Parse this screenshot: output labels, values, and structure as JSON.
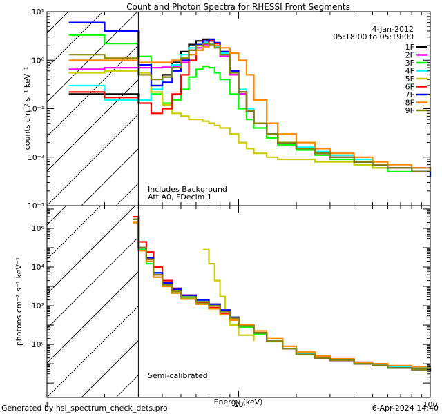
{
  "chart_data": [
    {
      "type": "line",
      "panel": "top",
      "title": "Count and Photon Spectra for RHESSI Front Segments",
      "date": "4-Jan-2012",
      "time_range": "05:18:00 to 05:19:00",
      "xlabel": "",
      "ylabel": "counts cm⁻² s⁻¹ keV⁻¹",
      "xscale": "log",
      "yscale": "log",
      "xlim": [
        1,
        100
      ],
      "ylim": [
        0.001,
        10
      ],
      "y_ticks": [
        "10⁻³",
        "10⁻²",
        "10⁻¹",
        "10⁰",
        "10¹"
      ],
      "vline_x": 3,
      "annotations": [
        "Includes Background",
        "Att A0, FDecim 1"
      ],
      "legend_position": "top-right",
      "series": [
        {
          "name": "1F",
          "color": "#000000",
          "x": [
            1.3,
            2,
            3,
            3.5,
            4,
            4.5,
            5,
            5.5,
            6,
            6.5,
            7,
            7.5,
            8,
            9,
            10,
            11,
            12,
            14,
            16,
            20,
            25,
            30,
            40,
            50,
            60,
            80,
            100
          ],
          "y": [
            0.2,
            0.2,
            0.15,
            0.3,
            0.5,
            0.9,
            1.5,
            2.1,
            2.5,
            2.7,
            2.5,
            2.0,
            1.3,
            0.5,
            0.2,
            0.09,
            0.05,
            0.03,
            0.02,
            0.015,
            0.012,
            0.01,
            0.008,
            0.007,
            0.006,
            0.006,
            0.005
          ]
        },
        {
          "name": "2F",
          "color": "#ff00ff",
          "x": [
            1.3,
            2,
            3,
            3.5,
            4,
            4.5,
            5,
            5.5,
            6,
            6.5,
            7,
            7.5,
            8,
            9,
            10,
            11,
            12,
            14,
            16,
            20,
            25,
            30,
            40,
            50,
            60,
            80,
            100
          ],
          "y": [
            0.65,
            0.7,
            0.7,
            0.7,
            0.72,
            0.75,
            0.9,
            1.3,
            1.8,
            2.1,
            2.2,
            1.8,
            1.2,
            0.5,
            0.2,
            0.09,
            0.05,
            0.03,
            0.02,
            0.015,
            0.012,
            0.01,
            0.008,
            0.007,
            0.006,
            0.005,
            0.005
          ]
        },
        {
          "name": "3F",
          "color": "#00ff00",
          "x": [
            1.3,
            2,
            3,
            3.5,
            4,
            4.5,
            5,
            5.5,
            6,
            6.5,
            7,
            7.5,
            8,
            9,
            10,
            11,
            12,
            14,
            16,
            20,
            25,
            30,
            40,
            50,
            60,
            80,
            100
          ],
          "y": [
            3.3,
            2.2,
            1.2,
            0.2,
            0.13,
            0.15,
            0.25,
            0.45,
            0.65,
            0.75,
            0.7,
            0.55,
            0.4,
            0.2,
            0.1,
            0.06,
            0.04,
            0.025,
            0.018,
            0.014,
            0.011,
            0.009,
            0.007,
            0.006,
            0.005,
            0.005,
            0.004
          ]
        },
        {
          "name": "4F",
          "color": "#00ffff",
          "x": [
            1.3,
            2,
            3,
            3.5,
            4,
            4.5,
            5,
            5.5,
            6,
            6.5,
            7,
            7.5,
            8,
            9,
            10,
            11,
            12,
            14,
            16,
            20,
            25,
            30,
            40,
            50,
            60,
            80,
            100
          ],
          "y": [
            0.3,
            0.15,
            0.15,
            0.25,
            0.45,
            0.8,
            1.3,
            1.8,
            2.1,
            2.3,
            2.2,
            1.9,
            1.4,
            0.6,
            0.25,
            0.1,
            0.05,
            0.03,
            0.02,
            0.016,
            0.013,
            0.011,
            0.009,
            0.007,
            0.006,
            0.005,
            0.004
          ]
        },
        {
          "name": "5F",
          "color": "#cccc00",
          "x": [
            1.3,
            2,
            3,
            3.5,
            4,
            4.5,
            5,
            5.5,
            6,
            6.5,
            7,
            7.5,
            8,
            9,
            10,
            11,
            12,
            14,
            16,
            20,
            25,
            30,
            40,
            50,
            60,
            80,
            100
          ],
          "y": [
            0.55,
            0.6,
            0.55,
            0.22,
            0.12,
            0.08,
            0.07,
            0.06,
            0.06,
            0.055,
            0.05,
            0.045,
            0.04,
            0.03,
            0.02,
            0.015,
            0.012,
            0.01,
            0.009,
            0.009,
            0.008,
            0.008,
            0.007,
            0.006,
            0.006,
            0.005,
            0.005
          ]
        },
        {
          "name": "6F",
          "color": "#ff0000",
          "x": [
            1.3,
            2,
            3,
            3.5,
            4,
            4.5,
            5,
            5.5,
            6,
            6.5,
            7,
            7.5,
            8,
            9,
            10,
            11,
            12,
            14,
            16,
            20,
            25,
            30,
            40,
            50,
            60,
            80,
            100
          ],
          "y": [
            0.22,
            0.17,
            0.13,
            0.08,
            0.1,
            0.2,
            0.5,
            1.0,
            1.6,
            2.2,
            2.6,
            2.2,
            1.5,
            0.6,
            0.22,
            0.09,
            0.05,
            0.03,
            0.02,
            0.015,
            0.012,
            0.01,
            0.008,
            0.007,
            0.006,
            0.005,
            0.005
          ]
        },
        {
          "name": "7F",
          "color": "#0000ff",
          "x": [
            1.3,
            2,
            3,
            3.5,
            4,
            4.5,
            5,
            5.5,
            6,
            6.5,
            7,
            7.5,
            8,
            9,
            10,
            11,
            12,
            14,
            16,
            20,
            25,
            30,
            40,
            50,
            60,
            80,
            100
          ],
          "y": [
            6.0,
            4.0,
            0.8,
            0.3,
            0.35,
            0.6,
            1.0,
            1.6,
            2.1,
            2.5,
            2.7,
            2.3,
            1.5,
            0.6,
            0.22,
            0.09,
            0.05,
            0.03,
            0.02,
            0.015,
            0.012,
            0.01,
            0.008,
            0.007,
            0.006,
            0.005,
            0.004
          ]
        },
        {
          "name": "8F",
          "color": "#ff8800",
          "x": [
            1.3,
            2,
            3,
            3.5,
            4,
            4.5,
            5,
            5.5,
            6,
            6.5,
            7,
            7.5,
            8,
            9,
            10,
            11,
            12,
            14,
            16,
            20,
            25,
            30,
            40,
            50,
            60,
            80,
            100
          ],
          "y": [
            1.0,
            1.0,
            0.9,
            0.9,
            0.9,
            1.0,
            1.1,
            1.3,
            1.6,
            1.9,
            2.1,
            2.0,
            1.8,
            1.4,
            1.0,
            0.5,
            0.15,
            0.05,
            0.03,
            0.02,
            0.015,
            0.012,
            0.01,
            0.008,
            0.007,
            0.006,
            0.005
          ]
        },
        {
          "name": "9F",
          "color": "#888800",
          "x": [
            1.3,
            2,
            3,
            3.5,
            4,
            4.5,
            5,
            5.5,
            6,
            6.5,
            7,
            7.5,
            8,
            9,
            10,
            11,
            12,
            14,
            16,
            20,
            25,
            30,
            40,
            50,
            60,
            80,
            100
          ],
          "y": [
            1.3,
            1.1,
            0.5,
            0.4,
            0.45,
            0.7,
            1.1,
            1.6,
            2.0,
            2.2,
            2.1,
            1.8,
            1.3,
            0.55,
            0.22,
            0.09,
            0.05,
            0.03,
            0.02,
            0.015,
            0.012,
            0.01,
            0.008,
            0.007,
            0.006,
            0.005,
            0.005
          ]
        }
      ]
    },
    {
      "type": "line",
      "panel": "bottom",
      "xlabel": "Energy (keV)",
      "ylabel": "photons cm⁻² s⁻¹ keV⁻¹",
      "xscale": "log",
      "yscale": "log",
      "xlim": [
        1,
        100
      ],
      "ylim": [
        0.0018,
        15000000
      ],
      "x_ticks": [
        "1",
        "10",
        "100"
      ],
      "y_ticks": [
        "10⁰",
        "10²",
        "10⁴",
        "10⁶"
      ],
      "vline_x": 3,
      "annotations": [
        "Semi-calibrated"
      ],
      "series": [
        {
          "name": "1F",
          "color": "#000000",
          "x": [
            2.8,
            3,
            3.3,
            3.6,
            4,
            4.5,
            5,
            6,
            7,
            8,
            9,
            10,
            12,
            14,
            17,
            20,
            25,
            30,
            40,
            50,
            60,
            80,
            100
          ],
          "y": [
            3000000,
            100000,
            30000,
            5000,
            1500,
            700,
            350,
            200,
            120,
            60,
            25,
            10,
            4,
            1.5,
            0.6,
            0.3,
            0.2,
            0.15,
            0.1,
            0.08,
            0.06,
            0.05,
            0.04
          ]
        },
        {
          "name": "2F",
          "color": "#ff00ff",
          "x": [
            2.8,
            3,
            3.3,
            3.6,
            4,
            4.5,
            5,
            6,
            7,
            8,
            9,
            10,
            12,
            14,
            17,
            20,
            25,
            30,
            40,
            50,
            60,
            80,
            100
          ],
          "y": [
            3000000,
            100000,
            25000,
            4000,
            1300,
            600,
            300,
            170,
            100,
            50,
            22,
            9,
            4,
            1.5,
            0.6,
            0.35,
            0.22,
            0.17,
            0.12,
            0.09,
            0.07,
            0.06,
            0.06
          ]
        },
        {
          "name": "3F",
          "color": "#00ff00",
          "x": [
            2.8,
            3,
            3.3,
            3.6,
            4,
            4.5,
            5,
            6,
            7,
            8,
            9,
            10,
            12,
            14,
            17,
            20,
            25,
            30,
            40,
            50,
            60,
            80,
            100
          ],
          "y": [
            2000000,
            80000,
            15000,
            3000,
            1000,
            450,
            230,
            130,
            80,
            40,
            18,
            8,
            3.5,
            1.4,
            0.6,
            0.3,
            0.2,
            0.15,
            0.1,
            0.08,
            0.06,
            0.05,
            0.05
          ]
        },
        {
          "name": "4F",
          "color": "#00ffff",
          "x": [
            2.8,
            3,
            3.3,
            3.6,
            4,
            4.5,
            5,
            6,
            7,
            8,
            9,
            10,
            12,
            14,
            17,
            20,
            25,
            30,
            40,
            50,
            60,
            80,
            100
          ],
          "y": [
            3000000,
            100000,
            30000,
            5000,
            1400,
            650,
            320,
            180,
            110,
            55,
            24,
            10,
            4,
            1.5,
            0.6,
            0.35,
            0.22,
            0.17,
            0.12,
            0.09,
            0.07,
            0.06,
            0.05
          ]
        },
        {
          "name": "5F",
          "color": "#cccc00",
          "x": [
            6.5,
            7,
            7.5,
            8,
            8.5,
            9,
            10,
            12
          ],
          "y": [
            80000,
            15000,
            2000,
            300,
            50,
            10,
            3,
            1.5
          ]
        },
        {
          "name": "6F",
          "color": "#ff0000",
          "x": [
            2.8,
            3,
            3.3,
            3.6,
            4,
            4.5,
            5,
            6,
            7,
            8,
            9,
            10,
            12,
            14,
            17,
            20,
            25,
            30,
            40,
            50,
            60,
            80,
            100
          ],
          "y": [
            4000000,
            200000,
            60000,
            10000,
            2000,
            800,
            350,
            150,
            80,
            40,
            20,
            9,
            4,
            1.5,
            0.6,
            0.3,
            0.2,
            0.15,
            0.1,
            0.08,
            0.06,
            0.05,
            0.05
          ]
        },
        {
          "name": "7F",
          "color": "#0000ff",
          "x": [
            2.8,
            3,
            3.3,
            3.6,
            4,
            4.5,
            5,
            6,
            7,
            8,
            9,
            10,
            12,
            14,
            17,
            20,
            25,
            30,
            40,
            50,
            60,
            80,
            100
          ],
          "y": [
            3000000,
            100000,
            30000,
            5000,
            1500,
            700,
            350,
            200,
            120,
            60,
            25,
            10,
            4,
            1.5,
            0.6,
            0.3,
            0.2,
            0.15,
            0.1,
            0.08,
            0.06,
            0.05,
            0.04
          ]
        },
        {
          "name": "8F",
          "color": "#ff8800",
          "x": [
            2.8,
            3,
            3.3,
            3.6,
            4,
            4.5,
            5,
            6,
            7,
            8,
            9,
            10,
            12,
            14,
            17,
            20,
            25,
            30,
            40,
            50,
            60,
            80,
            100
          ],
          "y": [
            2000000,
            70000,
            20000,
            3000,
            1000,
            450,
            220,
            120,
            70,
            35,
            18,
            10,
            5,
            2,
            0.8,
            0.4,
            0.25,
            0.18,
            0.12,
            0.1,
            0.08,
            0.07,
            0.06
          ]
        },
        {
          "name": "9F",
          "color": "#888800",
          "x": [
            2.8,
            3,
            3.3,
            3.6,
            4,
            4.5,
            5,
            6,
            7,
            8,
            9,
            10,
            12,
            14,
            17,
            20,
            25,
            30,
            40,
            50,
            60,
            80,
            100
          ],
          "y": [
            3000000,
            100000,
            25000,
            4000,
            1200,
            550,
            280,
            160,
            100,
            50,
            22,
            9,
            4,
            1.5,
            0.6,
            0.3,
            0.2,
            0.15,
            0.1,
            0.08,
            0.06,
            0.05,
            0.05
          ]
        }
      ]
    }
  ],
  "footer": {
    "generated_by": "Generated by hsi_spectrum_check_dets.pro",
    "timestamp": "6-Apr-2024 14:40"
  }
}
